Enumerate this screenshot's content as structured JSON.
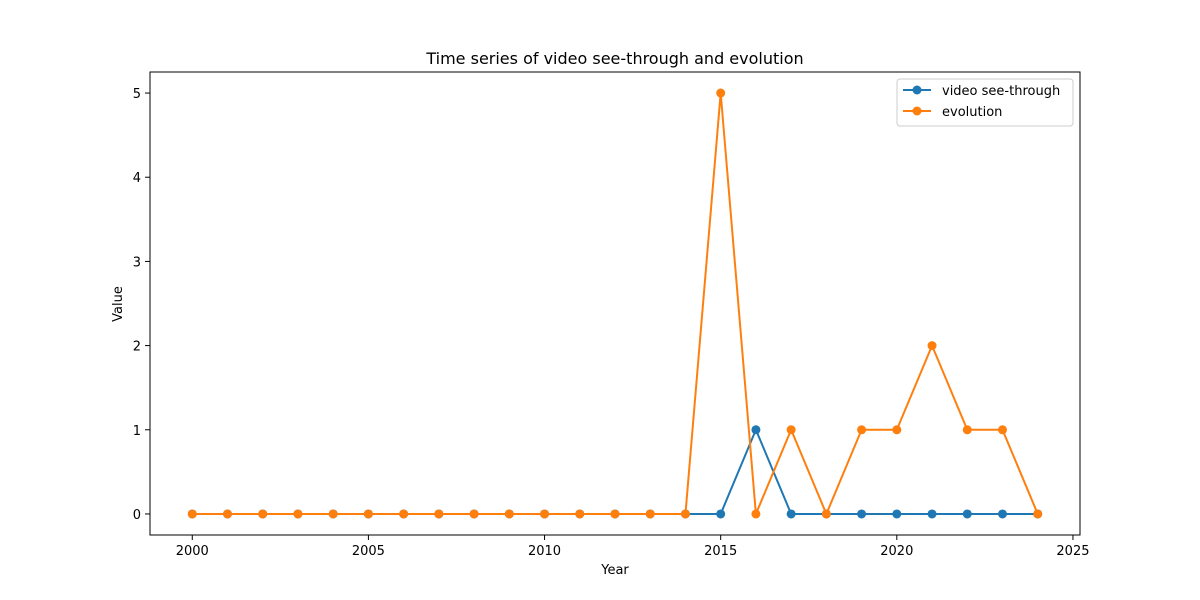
{
  "chart_data": {
    "type": "line",
    "title": "Time series of video see-through and evolution",
    "xlabel": "Year",
    "ylabel": "Value",
    "x": [
      2000,
      2001,
      2002,
      2003,
      2004,
      2005,
      2006,
      2007,
      2008,
      2009,
      2010,
      2011,
      2012,
      2013,
      2014,
      2015,
      2016,
      2017,
      2018,
      2019,
      2020,
      2021,
      2022,
      2023,
      2024
    ],
    "series": [
      {
        "name": "video see-through",
        "color": "#1f77b4",
        "values": [
          0,
          0,
          0,
          0,
          0,
          0,
          0,
          0,
          0,
          0,
          0,
          0,
          0,
          0,
          0,
          0,
          1,
          0,
          0,
          0,
          0,
          0,
          0,
          0,
          0
        ]
      },
      {
        "name": "evolution",
        "color": "#ff7f0e",
        "values": [
          0,
          0,
          0,
          0,
          0,
          0,
          0,
          0,
          0,
          0,
          0,
          0,
          0,
          0,
          0,
          5,
          0,
          1,
          0,
          1,
          1,
          2,
          1,
          1,
          0
        ]
      }
    ],
    "xlim": [
      1998.8,
      2025.2
    ],
    "ylim": [
      -0.25,
      5.25
    ],
    "xticks": [
      2000,
      2005,
      2010,
      2015,
      2020,
      2025
    ],
    "yticks": [
      0,
      1,
      2,
      3,
      4,
      5
    ],
    "grid": false,
    "legend_position": "top-right"
  }
}
